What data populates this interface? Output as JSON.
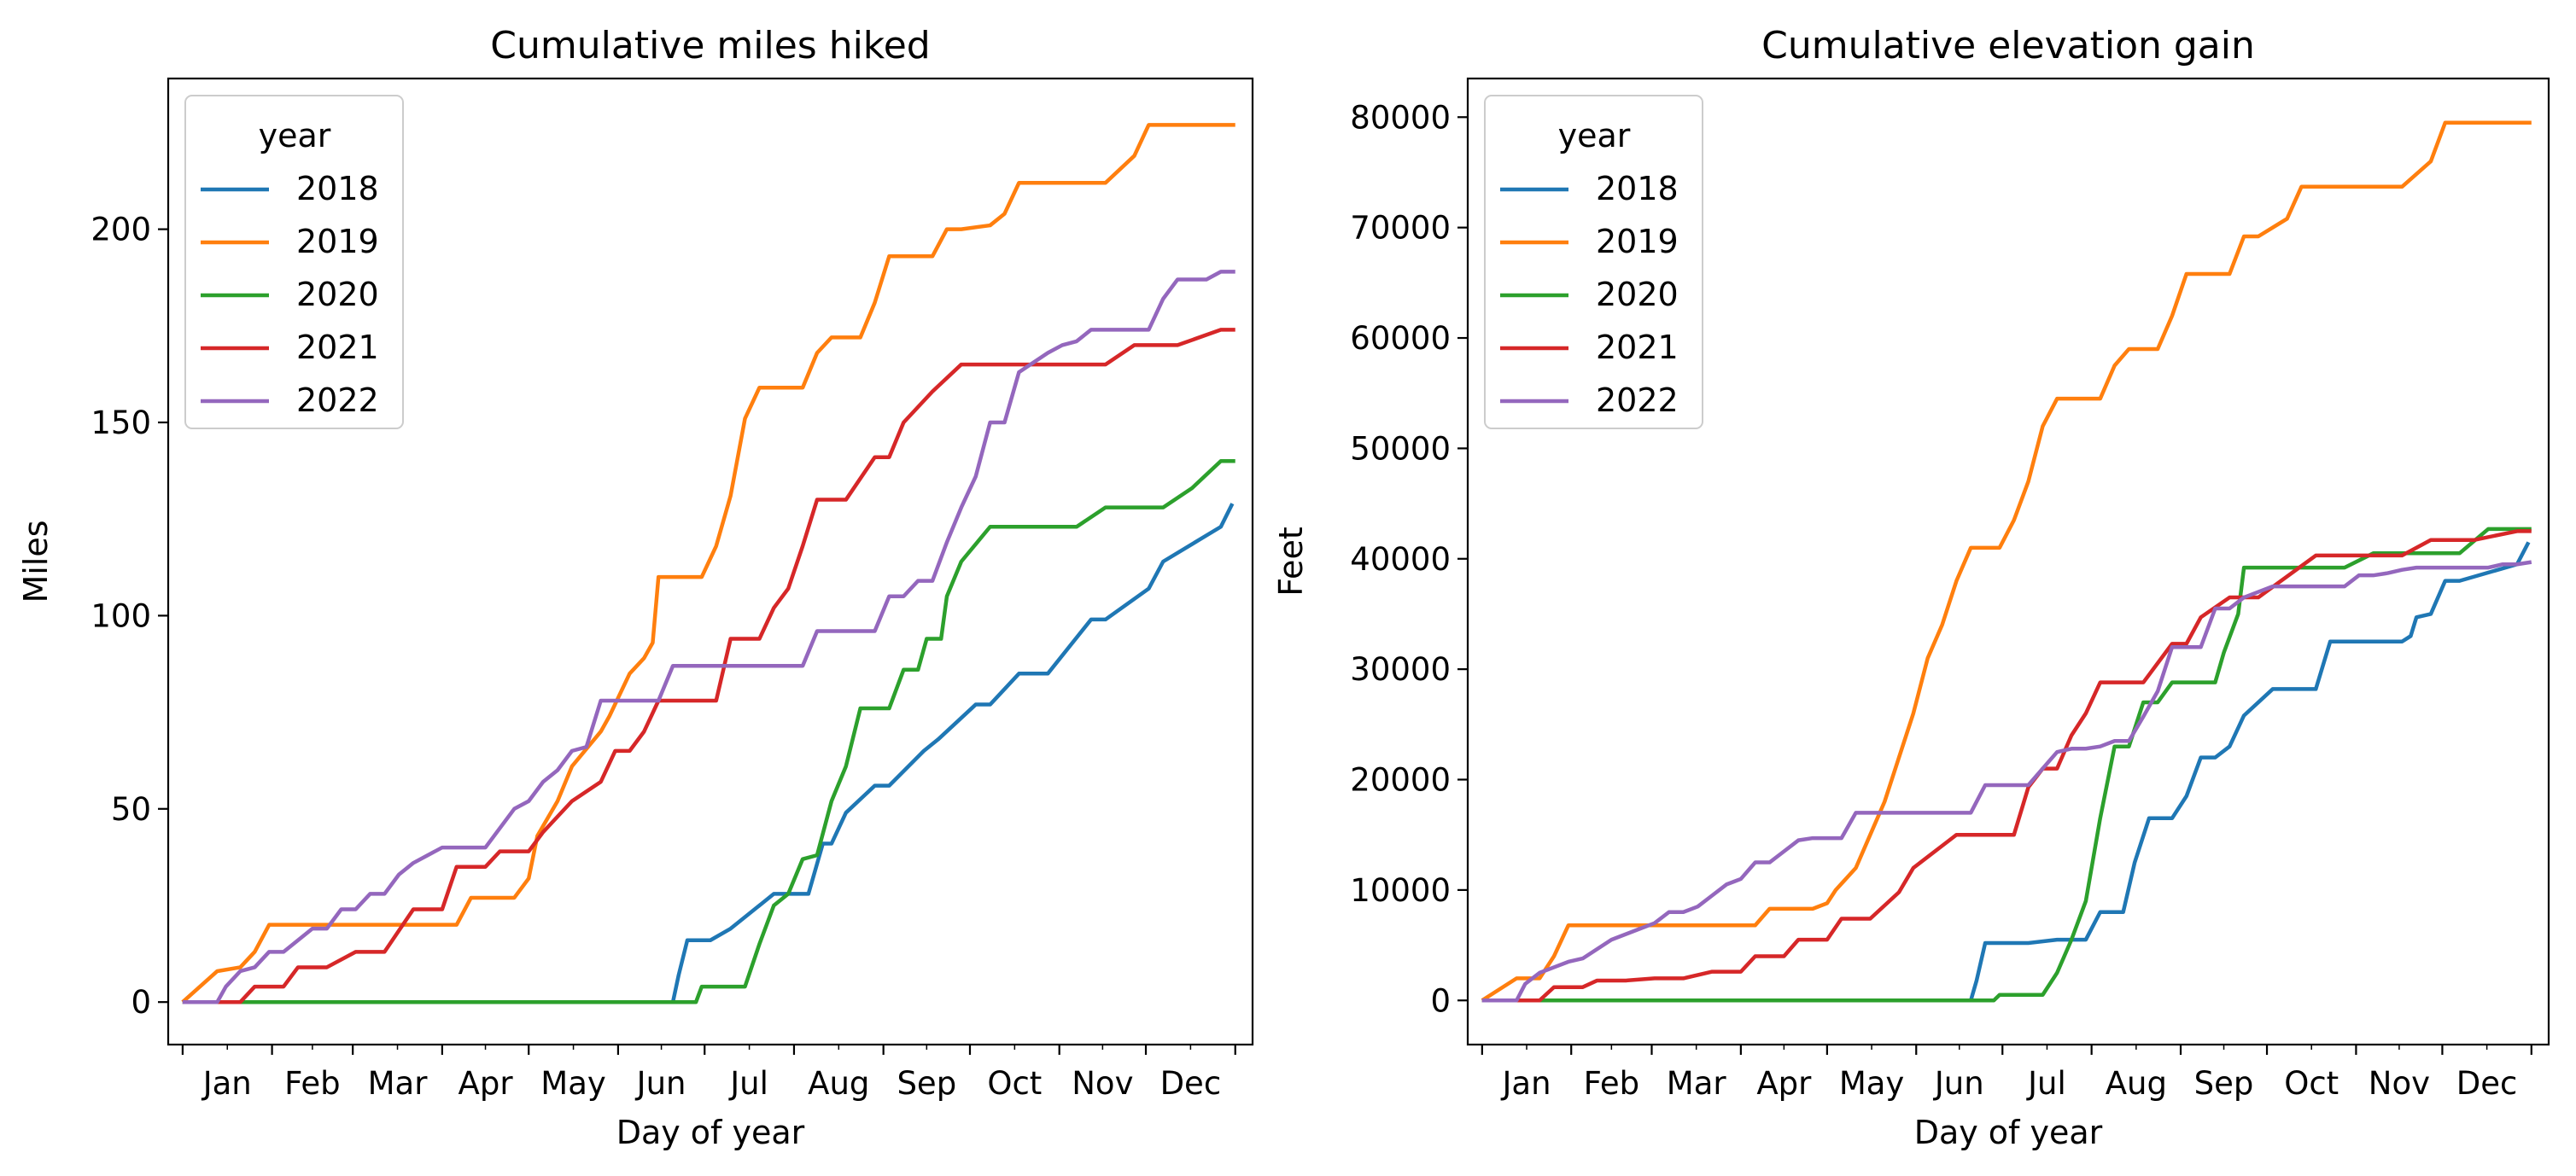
{
  "colors": {
    "2018": "#1f77b4",
    "2019": "#ff7f0e",
    "2020": "#2ca02c",
    "2021": "#d62728",
    "2022": "#9467bd"
  },
  "chart_data": [
    {
      "type": "line",
      "title": "Cumulative miles hiked",
      "xlabel": "Day of year",
      "ylabel": "Miles",
      "xlim": [
        -5,
        371
      ],
      "ylim": [
        -11,
        239
      ],
      "yticks": [
        0,
        50,
        100,
        150,
        200
      ],
      "ytick_labels": [
        "0",
        "50",
        "100",
        "150",
        "200"
      ],
      "x_month_labels": [
        "Jan",
        "Feb",
        "Mar",
        "Apr",
        "May",
        "Jun",
        "Jul",
        "Aug",
        "Sep",
        "Oct",
        "Nov",
        "Dec"
      ],
      "legend": {
        "title": "year",
        "placement": "upper-left"
      },
      "grid": false,
      "series": [
        {
          "name": "2018",
          "x": [
            0,
            170,
            172,
            175,
            183,
            190,
            205,
            217,
            222,
            225,
            230,
            240,
            245,
            257,
            262,
            275,
            280,
            290,
            293,
            300,
            315,
            320,
            335,
            340,
            360,
            364
          ],
          "y": [
            0,
            0,
            7,
            16,
            16,
            19,
            28,
            28,
            41,
            41,
            49,
            56,
            56,
            65,
            68,
            77,
            77,
            85,
            85,
            85,
            99,
            99,
            107,
            114,
            123,
            129
          ]
        },
        {
          "name": "2019",
          "x": [
            0,
            12,
            20,
            25,
            30,
            45,
            60,
            80,
            95,
            100,
            115,
            120,
            123,
            130,
            135,
            145,
            148,
            155,
            160,
            163,
            165,
            170,
            180,
            185,
            190,
            195,
            200,
            210,
            215,
            220,
            225,
            235,
            240,
            245,
            255,
            260,
            265,
            270,
            280,
            285,
            290,
            300,
            305,
            310,
            320,
            330,
            335,
            340,
            345,
            360,
            365
          ],
          "y": [
            0,
            8,
            9,
            13,
            20,
            20,
            20,
            20,
            20,
            27,
            27,
            32,
            43,
            52,
            61,
            70,
            74,
            85,
            89,
            93,
            110,
            110,
            110,
            118,
            131,
            151,
            159,
            159,
            159,
            168,
            172,
            172,
            181,
            193,
            193,
            193,
            200,
            200,
            201,
            204,
            212,
            212,
            212,
            212,
            212,
            219,
            227,
            227,
            227,
            227,
            227
          ]
        },
        {
          "name": "2020",
          "x": [
            0,
            178,
            180,
            185,
            195,
            200,
            205,
            210,
            215,
            220,
            225,
            230,
            235,
            240,
            245,
            250,
            255,
            258,
            263,
            265,
            270,
            280,
            290,
            300,
            310,
            320,
            330,
            340,
            350,
            360,
            365
          ],
          "y": [
            0,
            0,
            4,
            4,
            4,
            15,
            25,
            28,
            37,
            38,
            52,
            61,
            76,
            76,
            76,
            86,
            86,
            94,
            94,
            105,
            114,
            123,
            123,
            123,
            123,
            128,
            128,
            128,
            133,
            140,
            140
          ]
        },
        {
          "name": "2021",
          "x": [
            0,
            20,
            25,
            35,
            40,
            50,
            60,
            70,
            80,
            90,
            95,
            105,
            110,
            115,
            120,
            125,
            130,
            135,
            145,
            150,
            155,
            160,
            165,
            170,
            175,
            180,
            185,
            190,
            195,
            200,
            205,
            210,
            215,
            220,
            225,
            230,
            240,
            245,
            250,
            260,
            270,
            290,
            300,
            310,
            320,
            330,
            340,
            345,
            360,
            365
          ],
          "y": [
            0,
            0,
            4,
            4,
            9,
            9,
            13,
            13,
            24,
            24,
            35,
            35,
            39,
            39,
            39,
            44,
            48,
            52,
            57,
            65,
            65,
            70,
            78,
            78,
            78,
            78,
            78,
            94,
            94,
            94,
            102,
            107,
            118,
            130,
            130,
            130,
            141,
            141,
            150,
            158,
            165,
            165,
            165,
            165,
            165,
            170,
            170,
            170,
            174,
            174
          ]
        },
        {
          "name": "2022",
          "x": [
            0,
            12,
            15,
            20,
            25,
            30,
            35,
            45,
            50,
            55,
            60,
            65,
            70,
            75,
            80,
            85,
            90,
            95,
            100,
            105,
            110,
            115,
            120,
            125,
            130,
            135,
            140,
            145,
            150,
            155,
            160,
            165,
            170,
            175,
            180,
            185,
            190,
            195,
            200,
            205,
            210,
            215,
            220,
            225,
            230,
            235,
            240,
            245,
            250,
            255,
            260,
            265,
            270,
            275,
            280,
            285,
            290,
            300,
            305,
            310,
            315,
            320,
            325,
            330,
            335,
            340,
            345,
            350,
            355,
            360,
            365
          ],
          "y": [
            0,
            0,
            4,
            8,
            9,
            13,
            13,
            19,
            19,
            24,
            24,
            28,
            28,
            33,
            36,
            38,
            40,
            40,
            40,
            40,
            45,
            50,
            52,
            57,
            60,
            65,
            66,
            78,
            78,
            78,
            78,
            78,
            87,
            87,
            87,
            87,
            87,
            87,
            87,
            87,
            87,
            87,
            96,
            96,
            96,
            96,
            96,
            105,
            105,
            109,
            109,
            119,
            128,
            136,
            150,
            150,
            163,
            168,
            170,
            171,
            174,
            174,
            174,
            174,
            174,
            182,
            187,
            187,
            187,
            189,
            189
          ]
        }
      ]
    },
    {
      "type": "line",
      "title": "Cumulative elevation gain",
      "xlabel": "Day of year",
      "ylabel": "Feet",
      "xlim": [
        -5,
        371
      ],
      "ylim": [
        -4000,
        83500
      ],
      "yticks": [
        0,
        10000,
        20000,
        30000,
        40000,
        50000,
        60000,
        70000,
        80000
      ],
      "ytick_labels": [
        "0",
        "10000",
        "20000",
        "30000",
        "40000",
        "50000",
        "60000",
        "70000",
        "80000"
      ],
      "x_month_labels": [
        "Jan",
        "Feb",
        "Mar",
        "Apr",
        "May",
        "Jun",
        "Jul",
        "Aug",
        "Sep",
        "Oct",
        "Nov",
        "Dec"
      ],
      "legend": {
        "title": "year",
        "placement": "upper-left"
      },
      "grid": false,
      "series": [
        {
          "name": "2018",
          "x": [
            0,
            170,
            172,
            175,
            183,
            190,
            200,
            205,
            210,
            215,
            218,
            223,
            227,
            232,
            236,
            240,
            245,
            250,
            255,
            260,
            265,
            275,
            280,
            290,
            295,
            300,
            310,
            320,
            323,
            325,
            330,
            335,
            340,
            360,
            364
          ],
          "y": [
            0,
            0,
            1800,
            5200,
            5200,
            5200,
            5500,
            5500,
            5500,
            8000,
            8000,
            8000,
            12500,
            16500,
            16500,
            16500,
            18500,
            22000,
            22000,
            23000,
            25800,
            28200,
            28200,
            28200,
            32500,
            32500,
            32500,
            32500,
            33000,
            34700,
            35000,
            38000,
            38000,
            39500,
            41500
          ]
        },
        {
          "name": "2019",
          "x": [
            0,
            12,
            20,
            25,
            30,
            45,
            60,
            80,
            95,
            100,
            115,
            120,
            123,
            130,
            135,
            140,
            145,
            150,
            155,
            160,
            165,
            170,
            180,
            185,
            190,
            195,
            200,
            210,
            215,
            220,
            225,
            235,
            240,
            245,
            255,
            260,
            265,
            270,
            280,
            285,
            290,
            300,
            305,
            310,
            320,
            330,
            335,
            340,
            345,
            360,
            365
          ],
          "y": [
            0,
            2000,
            2000,
            4000,
            6800,
            6800,
            6800,
            6800,
            6800,
            8300,
            8300,
            8800,
            10000,
            12000,
            15000,
            18000,
            22000,
            26000,
            31000,
            34000,
            38000,
            41000,
            41000,
            43500,
            47000,
            52000,
            54500,
            54500,
            54500,
            57500,
            59000,
            59000,
            62000,
            65800,
            65800,
            65800,
            69200,
            69200,
            70800,
            73700,
            73700,
            73700,
            73700,
            73700,
            73700,
            76000,
            79500,
            79500,
            79500,
            79500,
            79500
          ]
        },
        {
          "name": "2020",
          "x": [
            0,
            178,
            180,
            185,
            195,
            200,
            205,
            210,
            215,
            220,
            225,
            230,
            235,
            240,
            245,
            250,
            255,
            258,
            263,
            265,
            270,
            280,
            290,
            300,
            310,
            320,
            330,
            340,
            350,
            360,
            365
          ],
          "y": [
            0,
            0,
            500,
            500,
            500,
            2500,
            5500,
            9000,
            16500,
            23000,
            23000,
            27000,
            27000,
            28800,
            28800,
            28800,
            28800,
            31500,
            35000,
            39200,
            39200,
            39200,
            39200,
            39200,
            40500,
            40500,
            40500,
            40500,
            42700,
            42700,
            42700
          ]
        },
        {
          "name": "2021",
          "x": [
            0,
            20,
            25,
            35,
            40,
            50,
            60,
            70,
            80,
            90,
            95,
            105,
            110,
            115,
            120,
            125,
            130,
            135,
            145,
            150,
            155,
            160,
            165,
            170,
            175,
            180,
            185,
            190,
            195,
            200,
            205,
            210,
            215,
            220,
            225,
            230,
            240,
            245,
            250,
            260,
            270,
            290,
            300,
            310,
            320,
            330,
            340,
            345,
            360,
            365
          ],
          "y": [
            0,
            0,
            1200,
            1200,
            1800,
            1800,
            2000,
            2000,
            2600,
            2600,
            4000,
            4000,
            5500,
            5500,
            5500,
            7400,
            7400,
            7400,
            9800,
            12000,
            13000,
            14000,
            15000,
            15000,
            15000,
            15000,
            15000,
            19300,
            21000,
            21000,
            24000,
            26000,
            28800,
            28800,
            28800,
            28800,
            32300,
            32300,
            34700,
            36500,
            36500,
            40300,
            40300,
            40300,
            40300,
            41700,
            41700,
            41700,
            42500,
            42500
          ]
        },
        {
          "name": "2022",
          "x": [
            0,
            12,
            15,
            20,
            25,
            30,
            35,
            45,
            50,
            55,
            60,
            65,
            70,
            75,
            80,
            85,
            90,
            95,
            100,
            105,
            110,
            115,
            120,
            125,
            130,
            135,
            140,
            145,
            150,
            155,
            160,
            165,
            170,
            175,
            180,
            185,
            190,
            195,
            200,
            205,
            210,
            215,
            220,
            225,
            230,
            235,
            240,
            245,
            250,
            255,
            260,
            265,
            270,
            275,
            280,
            285,
            290,
            300,
            305,
            310,
            315,
            320,
            325,
            330,
            335,
            340,
            345,
            350,
            355,
            360,
            365
          ],
          "y": [
            0,
            0,
            1500,
            2500,
            3000,
            3500,
            3800,
            5500,
            6000,
            6500,
            7000,
            8000,
            8000,
            8500,
            9500,
            10500,
            11000,
            12500,
            12500,
            13500,
            14500,
            14700,
            14700,
            14700,
            17000,
            17000,
            17000,
            17000,
            17000,
            17000,
            17000,
            17000,
            17000,
            19500,
            19500,
            19500,
            19500,
            21000,
            22500,
            22800,
            22800,
            23000,
            23500,
            23500,
            25700,
            28000,
            32000,
            32000,
            32000,
            35500,
            35500,
            36500,
            37000,
            37500,
            37500,
            37500,
            37500,
            37500,
            38500,
            38500,
            38700,
            39000,
            39200,
            39200,
            39200,
            39200,
            39200,
            39200,
            39500,
            39500,
            39700
          ]
        }
      ]
    }
  ]
}
